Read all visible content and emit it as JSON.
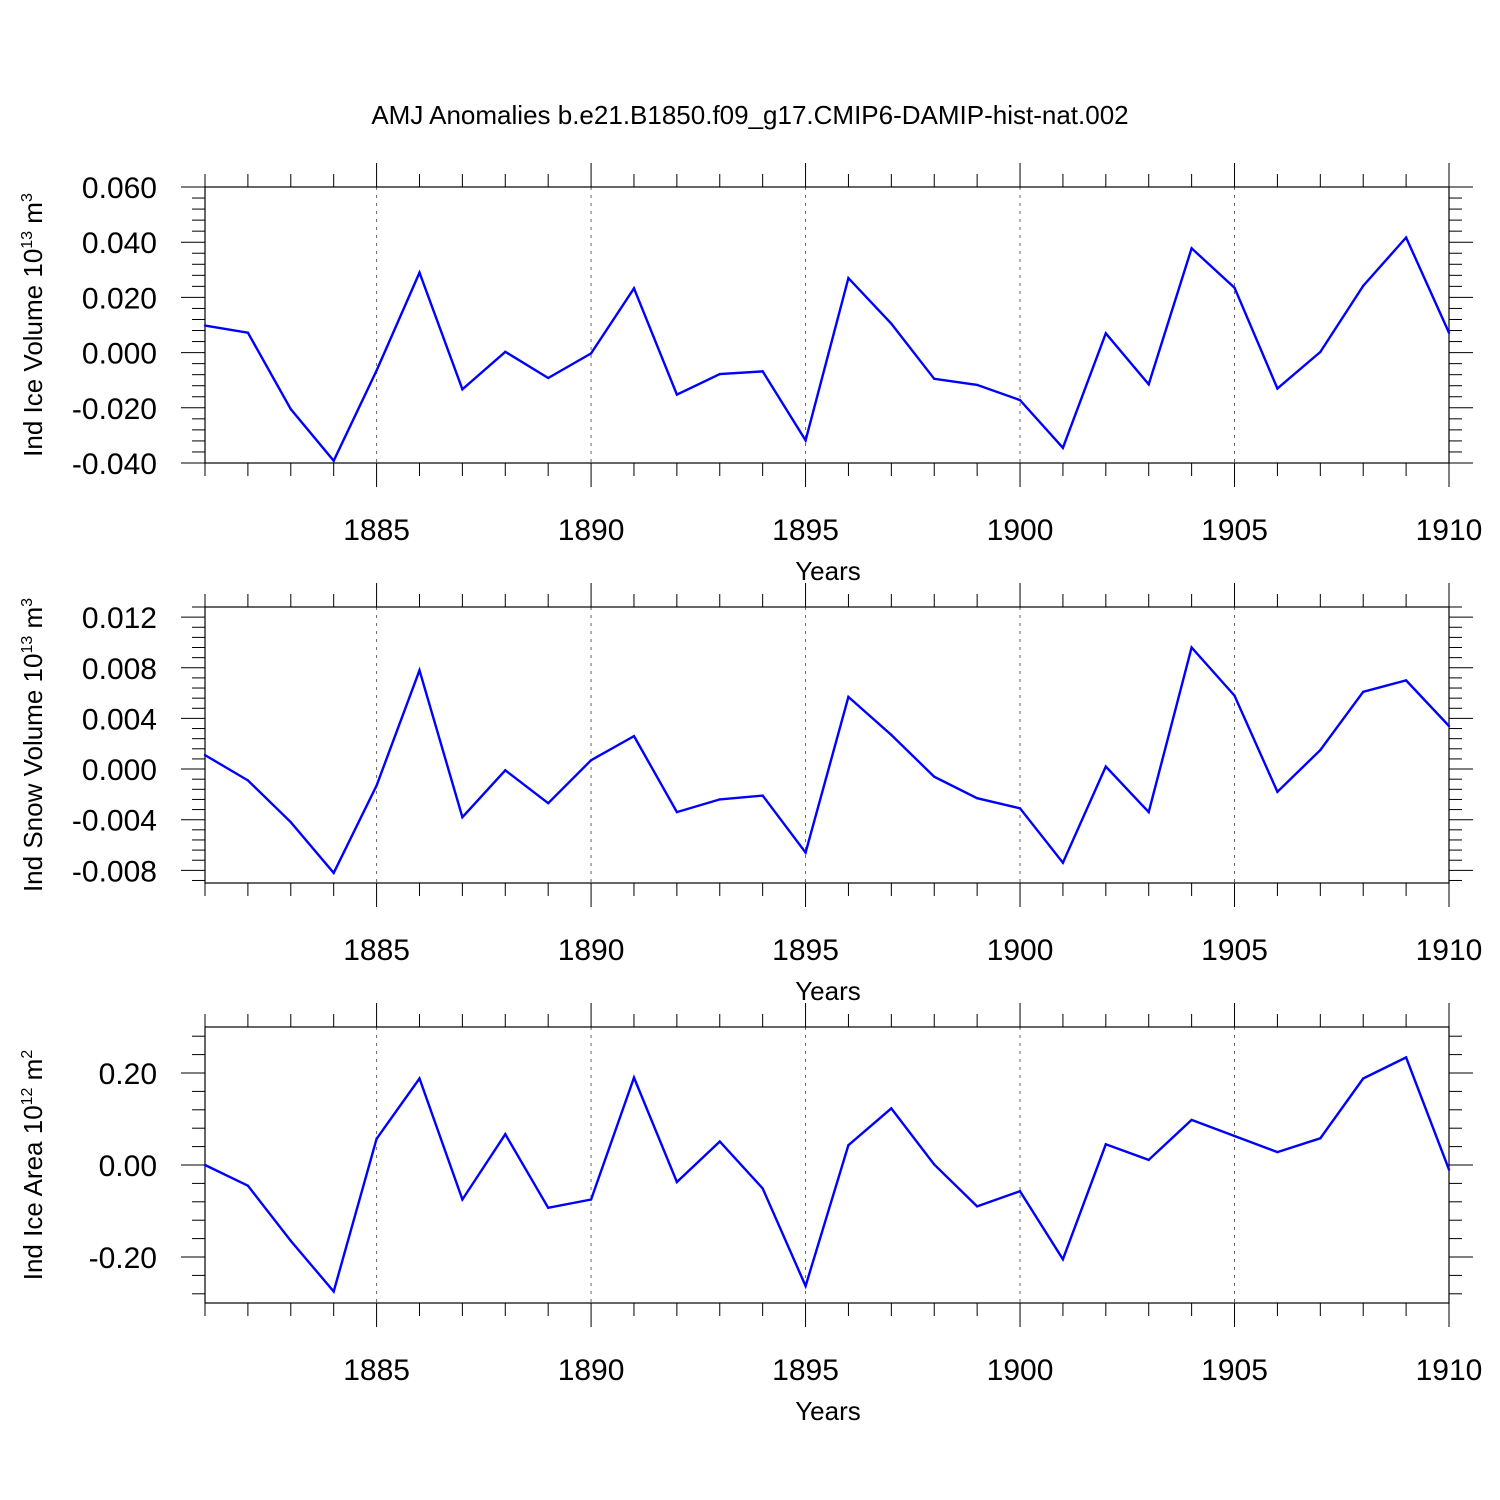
{
  "title": "AMJ Anomalies b.e21.B1850.f09_g17.CMIP6-DAMIP-hist-nat.002",
  "colors": {
    "line": "#0000ff",
    "axis": "#000000"
  },
  "chart_data": [
    {
      "type": "line",
      "ylabel_main": "Ind Ice Volume 10",
      "ylabel_exp": "13",
      "ylabel_unit": " m",
      "ylabel_unit_exp": "3",
      "xlabel": "Years",
      "xlim": [
        1881,
        1910
      ],
      "ylim": [
        -0.04,
        0.06
      ],
      "x_ticks": [
        1885,
        1890,
        1895,
        1900,
        1905,
        1910
      ],
      "x_tick_labels": [
        "1885",
        "1890",
        "1895",
        "1900",
        "1905",
        "1910"
      ],
      "y_ticks": [
        -0.04,
        -0.02,
        0.0,
        0.02,
        0.04,
        0.06
      ],
      "y_tick_labels": [
        "-0.040",
        "-0.020",
        "0.000",
        "0.020",
        "0.040",
        "0.060"
      ],
      "x": [
        1881,
        1882,
        1883,
        1884,
        1885,
        1886,
        1887,
        1888,
        1889,
        1890,
        1891,
        1892,
        1893,
        1894,
        1895,
        1896,
        1897,
        1898,
        1899,
        1900,
        1901,
        1902,
        1903,
        1904,
        1905,
        1906,
        1907,
        1908,
        1909,
        1910
      ],
      "values": [
        0.0098,
        0.0072,
        -0.0205,
        -0.0392,
        -0.0065,
        0.029,
        -0.0133,
        0.0003,
        -0.0092,
        -0.0003,
        0.0233,
        -0.0152,
        -0.0078,
        -0.0068,
        -0.0318,
        0.027,
        0.0105,
        -0.0095,
        -0.0117,
        -0.0172,
        -0.0345,
        0.007,
        -0.0115,
        0.0378,
        0.0235,
        -0.013,
        0.0002,
        0.0242,
        0.0417,
        0.0072
      ]
    },
    {
      "type": "line",
      "ylabel_main": "Ind Snow Volume 10",
      "ylabel_exp": "13",
      "ylabel_unit": " m",
      "ylabel_unit_exp": "3",
      "xlabel": "Years",
      "xlim": [
        1881,
        1910
      ],
      "ylim": [
        -0.009,
        0.0128
      ],
      "x_ticks": [
        1885,
        1890,
        1895,
        1900,
        1905,
        1910
      ],
      "x_tick_labels": [
        "1885",
        "1890",
        "1895",
        "1900",
        "1905",
        "1910"
      ],
      "y_ticks": [
        -0.008,
        -0.004,
        0.0,
        0.004,
        0.008,
        0.012
      ],
      "y_tick_labels": [
        "-0.008",
        "-0.004",
        "0.000",
        "0.004",
        "0.008",
        "0.012"
      ],
      "x": [
        1881,
        1882,
        1883,
        1884,
        1885,
        1886,
        1887,
        1888,
        1889,
        1890,
        1891,
        1892,
        1893,
        1894,
        1895,
        1896,
        1897,
        1898,
        1899,
        1900,
        1901,
        1902,
        1903,
        1904,
        1905,
        1906,
        1907,
        1908,
        1909,
        1910
      ],
      "values": [
        0.0011,
        -0.0009,
        -0.0042,
        -0.0082,
        -0.0013,
        0.0078,
        -0.0038,
        -0.0001,
        -0.0027,
        0.0007,
        0.0026,
        -0.0034,
        -0.0024,
        -0.0021,
        -0.0066,
        0.0057,
        0.0027,
        -0.0006,
        -0.0023,
        -0.0031,
        -0.0074,
        0.0002,
        -0.0034,
        0.0096,
        0.0058,
        -0.0018,
        0.0015,
        0.0061,
        0.007,
        0.0034
      ]
    },
    {
      "type": "line",
      "ylabel_main": "Ind Ice Area 10",
      "ylabel_exp": "12",
      "ylabel_unit": " m",
      "ylabel_unit_exp": "2",
      "xlabel": "Years",
      "xlim": [
        1881,
        1910
      ],
      "ylim": [
        -0.3,
        0.3
      ],
      "x_ticks": [
        1885,
        1890,
        1895,
        1900,
        1905,
        1910
      ],
      "x_tick_labels": [
        "1885",
        "1890",
        "1895",
        "1900",
        "1905",
        "1910"
      ],
      "y_ticks": [
        -0.2,
        0.0,
        0.2
      ],
      "y_tick_labels": [
        "-0.20",
        "0.00",
        "0.20"
      ],
      "x": [
        1881,
        1882,
        1883,
        1884,
        1885,
        1886,
        1887,
        1888,
        1889,
        1890,
        1891,
        1892,
        1893,
        1894,
        1895,
        1896,
        1897,
        1898,
        1899,
        1900,
        1901,
        1902,
        1903,
        1904,
        1905,
        1906,
        1907,
        1908,
        1909,
        1910
      ],
      "values": [
        0.0,
        -0.045,
        -0.165,
        -0.275,
        0.057,
        0.188,
        -0.075,
        0.067,
        -0.093,
        -0.075,
        0.19,
        -0.037,
        0.051,
        -0.051,
        -0.263,
        0.043,
        0.123,
        0.001,
        -0.09,
        -0.057,
        -0.205,
        0.045,
        0.011,
        0.098,
        0.063,
        0.028,
        0.058,
        0.188,
        0.234,
        -0.01
      ]
    }
  ]
}
